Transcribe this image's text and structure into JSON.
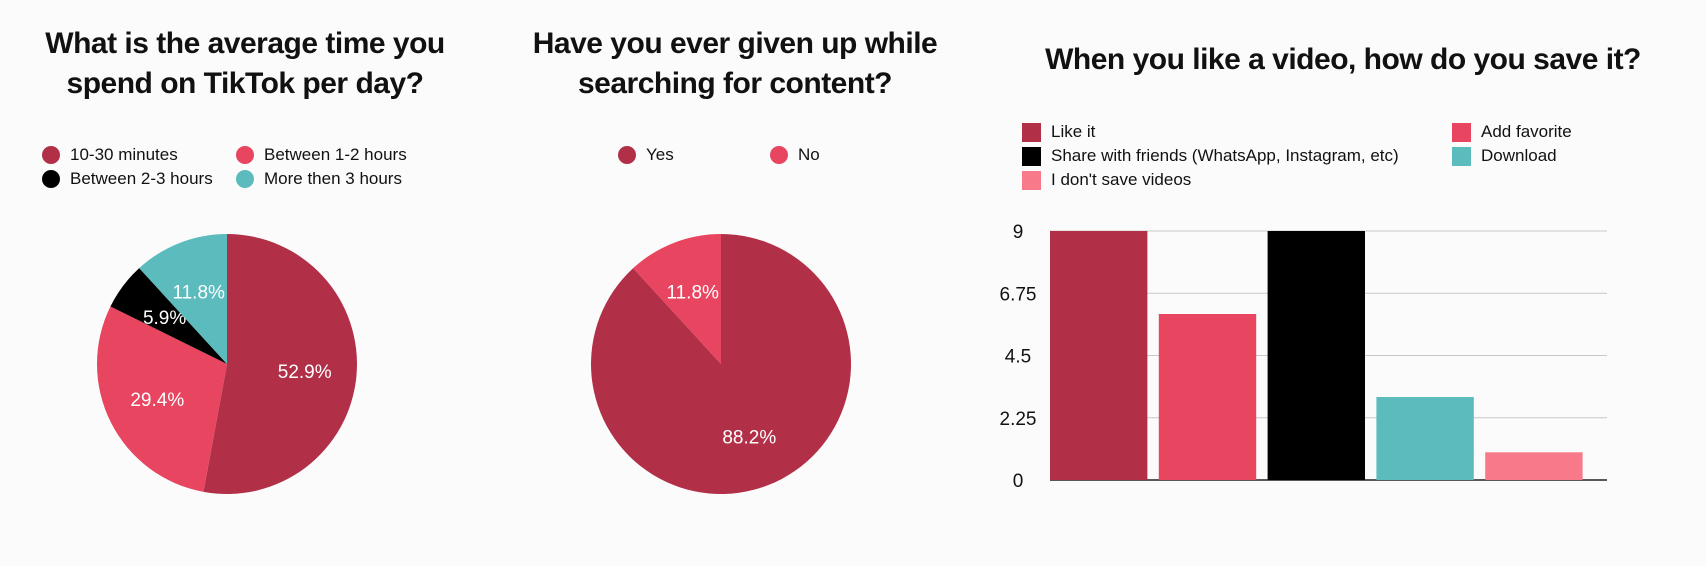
{
  "chart_data": [
    {
      "type": "pie",
      "title": "What is the average time you spend on TikTok per day?",
      "legend_position": "top",
      "slices": [
        {
          "label": "10-30 minutes",
          "value": 52.9,
          "display": "52.9%",
          "color": "#b13048"
        },
        {
          "label": "Between 1-2 hours",
          "value": 29.4,
          "display": "29.4%",
          "color": "#e84560"
        },
        {
          "label": "Between 2-3 hours",
          "value": 5.9,
          "display": "5.9%",
          "color": "#000000"
        },
        {
          "label": "More then 3 hours",
          "value": 11.8,
          "display": "11.8%",
          "color": "#5cbcbd"
        }
      ]
    },
    {
      "type": "pie",
      "title": "Have you ever given up while searching for content?",
      "legend_position": "top",
      "slices": [
        {
          "label": "Yes",
          "value": 88.2,
          "display": "88.2%",
          "color": "#b13048"
        },
        {
          "label": "No",
          "value": 11.8,
          "display": "11.8%",
          "color": "#e84560"
        }
      ]
    },
    {
      "type": "bar",
      "title": "When you like a video, how do you save it?",
      "legend_position": "top",
      "series": [
        {
          "name": "Like it",
          "value": 9,
          "color": "#b13048"
        },
        {
          "name": "Add favorite",
          "value": 6,
          "color": "#e84560"
        },
        {
          "name": "Share with friends (WhatsApp, Instagram, etc)",
          "value": 9,
          "color": "#000000"
        },
        {
          "name": "Download",
          "value": 3,
          "color": "#5cbcbd"
        },
        {
          "name": "I don't save videos",
          "value": 1,
          "color": "#f7798a"
        }
      ],
      "ylim": [
        0,
        9
      ],
      "yticks": [
        "0",
        "2.25",
        "4.5",
        "6.75",
        "9"
      ],
      "grid": true
    }
  ]
}
